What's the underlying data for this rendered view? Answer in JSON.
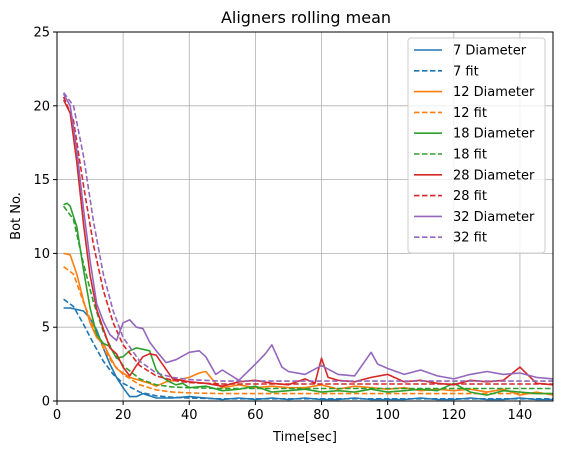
{
  "chart_data": {
    "type": "line",
    "title": "Aligners rolling mean",
    "xlabel": "Time[sec]",
    "ylabel": "Bot No.",
    "xlim": [
      0,
      150
    ],
    "ylim": [
      0,
      25
    ],
    "xticks": [
      0,
      20,
      40,
      60,
      80,
      100,
      120,
      140
    ],
    "yticks": [
      0,
      5,
      10,
      15,
      20,
      25
    ],
    "grid": true,
    "legend_position": "top-right",
    "series": [
      {
        "name": "7 Diameter",
        "color": "#1f77b4",
        "style": "solid",
        "x": [
          2,
          4,
          6,
          8,
          10,
          12,
          14,
          16,
          18,
          20,
          22,
          24,
          26,
          30,
          35,
          40,
          45,
          50,
          55,
          60,
          65,
          70,
          75,
          80,
          85,
          90,
          95,
          100,
          105,
          110,
          115,
          120,
          125,
          130,
          135,
          140,
          145,
          150
        ],
        "y": [
          6.3,
          6.3,
          6.2,
          6.1,
          5.6,
          4.8,
          3.6,
          2.5,
          1.6,
          0.9,
          0.3,
          0.3,
          0.5,
          0.2,
          0.2,
          0.3,
          0.2,
          0.1,
          0.2,
          0.1,
          0.2,
          0.1,
          0.2,
          0.1,
          0.1,
          0.2,
          0.1,
          0.1,
          0.1,
          0.2,
          0.1,
          0.1,
          0.2,
          0.1,
          0.1,
          0.2,
          0.1,
          0.1
        ]
      },
      {
        "name": "7 fit",
        "color": "#1f77b4",
        "style": "dashed",
        "x": [
          2,
          5,
          8,
          11,
          14,
          17,
          20,
          25,
          30,
          35,
          40,
          50,
          60,
          70,
          80,
          90,
          100,
          110,
          120,
          130,
          140,
          150
        ],
        "y": [
          6.9,
          6.4,
          5.2,
          3.9,
          2.7,
          1.8,
          1.2,
          0.6,
          0.35,
          0.25,
          0.2,
          0.15,
          0.15,
          0.15,
          0.15,
          0.15,
          0.15,
          0.15,
          0.15,
          0.15,
          0.15,
          0.15
        ]
      },
      {
        "name": "12 Diameter",
        "color": "#ff7f0e",
        "style": "solid",
        "x": [
          2,
          4,
          6,
          8,
          10,
          12,
          14,
          16,
          18,
          20,
          22,
          25,
          28,
          30,
          33,
          36,
          40,
          43,
          45,
          48,
          50,
          55,
          60,
          65,
          70,
          75,
          80,
          85,
          90,
          95,
          100,
          105,
          110,
          115,
          120,
          125,
          130,
          135,
          140,
          145,
          150
        ],
        "y": [
          10.0,
          9.9,
          8.6,
          6.8,
          5.3,
          4.3,
          3.9,
          3.0,
          2.2,
          1.9,
          1.6,
          1.4,
          1.2,
          1.0,
          1.3,
          1.4,
          1.6,
          1.9,
          2.0,
          1.2,
          0.9,
          1.1,
          0.9,
          1.0,
          0.9,
          0.9,
          1.1,
          0.8,
          1.0,
          0.9,
          0.8,
          0.9,
          0.7,
          0.8,
          0.7,
          0.8,
          0.6,
          0.8,
          0.4,
          0.6,
          0.4
        ]
      },
      {
        "name": "12 fit",
        "color": "#ff7f0e",
        "style": "dashed",
        "x": [
          2,
          5,
          8,
          11,
          14,
          17,
          20,
          25,
          30,
          35,
          40,
          50,
          60,
          70,
          80,
          90,
          100,
          110,
          120,
          130,
          140,
          150
        ],
        "y": [
          9.1,
          8.6,
          6.7,
          5.0,
          3.6,
          2.5,
          1.8,
          1.1,
          0.75,
          0.6,
          0.55,
          0.5,
          0.5,
          0.5,
          0.5,
          0.5,
          0.5,
          0.5,
          0.5,
          0.5,
          0.5,
          0.5
        ]
      },
      {
        "name": "18 Diameter",
        "color": "#2ca02c",
        "style": "solid",
        "x": [
          2,
          3,
          4,
          6,
          8,
          10,
          12,
          14,
          16,
          18,
          20,
          22,
          24,
          26,
          28,
          30,
          32,
          34,
          36,
          38,
          40,
          45,
          50,
          55,
          60,
          65,
          70,
          75,
          80,
          85,
          90,
          95,
          100,
          105,
          110,
          115,
          120,
          125,
          130,
          135,
          140,
          145,
          150
        ],
        "y": [
          13.3,
          13.4,
          13.2,
          11.8,
          8.9,
          6.3,
          4.5,
          3.9,
          3.7,
          2.9,
          3.0,
          3.4,
          3.6,
          3.5,
          3.4,
          2.1,
          1.6,
          1.3,
          1.1,
          1.2,
          0.9,
          1.0,
          0.7,
          0.8,
          1.0,
          0.6,
          0.7,
          0.8,
          0.6,
          0.7,
          0.6,
          0.8,
          0.6,
          0.7,
          0.8,
          0.7,
          1.2,
          0.6,
          0.4,
          0.7,
          0.6,
          0.5,
          0.5
        ]
      },
      {
        "name": "18 fit",
        "color": "#2ca02c",
        "style": "dashed",
        "x": [
          2,
          5,
          8,
          11,
          14,
          17,
          20,
          25,
          30,
          35,
          40,
          50,
          60,
          70,
          80,
          90,
          100,
          110,
          120,
          130,
          140,
          150
        ],
        "y": [
          13.2,
          12.3,
          9.3,
          6.7,
          4.7,
          3.3,
          2.4,
          1.5,
          1.1,
          0.95,
          0.9,
          0.85,
          0.85,
          0.85,
          0.85,
          0.85,
          0.85,
          0.85,
          0.85,
          0.85,
          0.85,
          0.85
        ]
      },
      {
        "name": "28 Diameter",
        "color": "#d62728",
        "style": "solid",
        "x": [
          2,
          4,
          6,
          8,
          10,
          12,
          14,
          16,
          18,
          20,
          22,
          24,
          26,
          28,
          30,
          35,
          40,
          45,
          50,
          55,
          60,
          65,
          70,
          75,
          78,
          80,
          82,
          85,
          90,
          95,
          100,
          105,
          110,
          115,
          120,
          125,
          130,
          135,
          140,
          145,
          150
        ],
        "y": [
          20.4,
          19.5,
          16.2,
          12.0,
          8.5,
          6.2,
          4.9,
          3.6,
          3.2,
          2.3,
          1.7,
          2.4,
          3.0,
          3.2,
          3.1,
          1.5,
          1.3,
          1.2,
          1.0,
          1.3,
          1.4,
          1.2,
          1.1,
          1.5,
          1.2,
          2.9,
          1.6,
          1.4,
          1.3,
          1.6,
          1.8,
          1.3,
          1.4,
          1.2,
          1.1,
          1.4,
          1.3,
          1.4,
          2.3,
          1.2,
          1.1
        ]
      },
      {
        "name": "28 fit",
        "color": "#d62728",
        "style": "dashed",
        "x": [
          2,
          5,
          8,
          11,
          14,
          17,
          20,
          25,
          30,
          35,
          40,
          50,
          60,
          70,
          80,
          90,
          100,
          110,
          120,
          130,
          140,
          150
        ],
        "y": [
          20.6,
          19.0,
          14.6,
          10.6,
          7.5,
          5.3,
          3.8,
          2.4,
          1.7,
          1.4,
          1.25,
          1.15,
          1.15,
          1.15,
          1.15,
          1.15,
          1.15,
          1.15,
          1.15,
          1.15,
          1.15,
          1.15
        ]
      },
      {
        "name": "32 Diameter",
        "color": "#9467bd",
        "style": "solid",
        "x": [
          2,
          4,
          6,
          8,
          10,
          12,
          14,
          16,
          18,
          20,
          22,
          24,
          26,
          28,
          30,
          33,
          36,
          40,
          43,
          45,
          48,
          50,
          55,
          60,
          63,
          65,
          68,
          70,
          75,
          80,
          85,
          90,
          95,
          97,
          100,
          105,
          110,
          115,
          120,
          125,
          130,
          135,
          140,
          145,
          150
        ],
        "y": [
          20.8,
          20.0,
          17.0,
          13.0,
          9.5,
          6.6,
          5.4,
          4.5,
          4.1,
          5.3,
          5.5,
          5.0,
          4.9,
          4.0,
          3.4,
          2.6,
          2.8,
          3.3,
          3.4,
          3.0,
          1.8,
          2.1,
          1.4,
          2.5,
          3.2,
          3.8,
          2.3,
          2.0,
          1.8,
          2.4,
          1.8,
          1.7,
          3.3,
          2.5,
          2.2,
          1.8,
          2.1,
          1.7,
          1.5,
          1.8,
          2.0,
          1.8,
          1.9,
          1.6,
          1.5
        ]
      },
      {
        "name": "32 fit",
        "color": "#9467bd",
        "style": "dashed",
        "x": [
          2,
          5,
          8,
          11,
          14,
          17,
          20,
          25,
          30,
          35,
          40,
          50,
          60,
          70,
          80,
          90,
          100,
          110,
          120,
          130,
          140,
          150
        ],
        "y": [
          20.9,
          20.0,
          16.6,
          12.2,
          8.6,
          6.1,
          4.3,
          2.7,
          1.9,
          1.6,
          1.45,
          1.35,
          1.35,
          1.35,
          1.35,
          1.35,
          1.35,
          1.35,
          1.35,
          1.35,
          1.35,
          1.35
        ]
      }
    ]
  }
}
